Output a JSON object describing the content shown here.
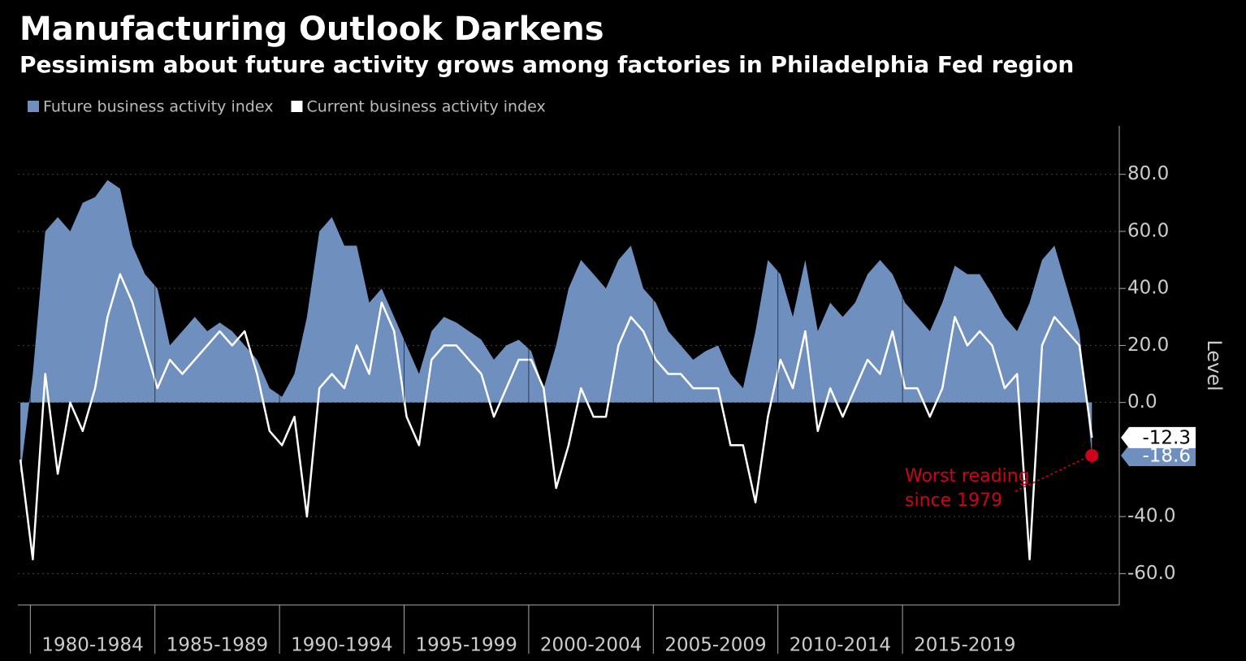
{
  "chart_data": {
    "type": "area_line",
    "title": "Manufacturing Outlook Darkens",
    "subtitle": "Pessimism about future activity grows among factories in Philadelphia Fed region",
    "y_axis_label": "Level",
    "annotation": [
      "Worst reading",
      "since 1979"
    ],
    "x": [
      1979.6,
      1980.1,
      1980.6,
      1981.1,
      1981.6,
      1982.1,
      1982.6,
      1983.1,
      1983.6,
      1984.1,
      1984.6,
      1985.1,
      1985.6,
      1986.1,
      1986.6,
      1987.1,
      1987.6,
      1988.1,
      1988.6,
      1989.1,
      1989.6,
      1990.1,
      1990.6,
      1991.1,
      1991.6,
      1992.1,
      1992.6,
      1993.1,
      1993.6,
      1994.1,
      1994.6,
      1995.1,
      1995.6,
      1996.1,
      1996.6,
      1997.1,
      1997.6,
      1998.1,
      1998.6,
      1999.1,
      1999.6,
      2000.1,
      2000.6,
      2001.1,
      2001.6,
      2002.1,
      2002.6,
      2003.1,
      2003.6,
      2004.1,
      2004.6,
      2005.1,
      2005.6,
      2006.1,
      2006.6,
      2007.1,
      2007.6,
      2008.1,
      2008.6,
      2009.1,
      2009.6,
      2010.1,
      2010.6,
      2011.1,
      2011.6,
      2012.1,
      2012.6,
      2013.1,
      2013.6,
      2014.1,
      2014.6,
      2015.1,
      2015.6,
      2016.1,
      2016.6,
      2017.1,
      2017.6,
      2018.1,
      2018.6,
      2019.1,
      2019.6,
      2020.1,
      2020.6,
      2021.1,
      2021.6,
      2022.1,
      2022.6
    ],
    "series": [
      {
        "name": "Future business activity index",
        "color": "#6f8fbf",
        "kind": "area",
        "values": [
          -25,
          10,
          60,
          65,
          60,
          70,
          72,
          78,
          75,
          55,
          45,
          40,
          20,
          25,
          30,
          25,
          28,
          25,
          20,
          15,
          5,
          2,
          10,
          30,
          60,
          65,
          55,
          55,
          35,
          40,
          30,
          20,
          10,
          25,
          30,
          28,
          25,
          22,
          15,
          20,
          22,
          18,
          5,
          20,
          40,
          50,
          45,
          40,
          50,
          55,
          40,
          35,
          25,
          20,
          15,
          18,
          20,
          10,
          5,
          25,
          50,
          45,
          30,
          50,
          25,
          35,
          30,
          35,
          45,
          50,
          45,
          35,
          30,
          25,
          35,
          48,
          45,
          45,
          38,
          30,
          25,
          35,
          50,
          55,
          40,
          25,
          -18.6
        ]
      },
      {
        "name": "Current business activity index",
        "color": "#ffffff",
        "kind": "line",
        "values": [
          -20,
          -55,
          10,
          -25,
          0,
          -10,
          5,
          30,
          45,
          35,
          20,
          5,
          15,
          10,
          15,
          20,
          25,
          20,
          25,
          10,
          -10,
          -15,
          -5,
          -40,
          5,
          10,
          5,
          20,
          10,
          35,
          25,
          -5,
          -15,
          15,
          20,
          20,
          15,
          10,
          -5,
          5,
          15,
          15,
          5,
          -30,
          -15,
          5,
          -5,
          -5,
          20,
          30,
          25,
          15,
          10,
          10,
          5,
          5,
          5,
          -15,
          -15,
          -35,
          -5,
          15,
          5,
          25,
          -10,
          5,
          -5,
          5,
          15,
          10,
          25,
          5,
          5,
          -5,
          5,
          30,
          20,
          25,
          20,
          5,
          10,
          -55,
          20,
          30,
          25,
          20,
          -12.3
        ]
      }
    ],
    "xlim": [
      1979.5,
      2023.7
    ],
    "xticks": [
      {
        "value": 1980,
        "label": "1980-1984"
      },
      {
        "value": 1985,
        "label": "1985-1989"
      },
      {
        "value": 1990,
        "label": "1990-1994"
      },
      {
        "value": 1995,
        "label": "1995-1999"
      },
      {
        "value": 2000,
        "label": "2000-2004"
      },
      {
        "value": 2005,
        "label": "2005-2009"
      },
      {
        "value": 2010,
        "label": "2010-2014"
      },
      {
        "value": 2015,
        "label": "2015-2019"
      }
    ],
    "ylim": [
      -71,
      97
    ],
    "yticks": [
      {
        "value": -60,
        "label": "-60.0"
      },
      {
        "value": -40,
        "label": "-40.0"
      },
      {
        "value": 0,
        "label": "0.0"
      },
      {
        "value": 20,
        "label": "20.0"
      },
      {
        "value": 40,
        "label": "40.0"
      },
      {
        "value": 60,
        "label": "60.0"
      },
      {
        "value": 80,
        "label": "80.0"
      }
    ],
    "grid": true,
    "annotation_color": "#d0021b"
  }
}
